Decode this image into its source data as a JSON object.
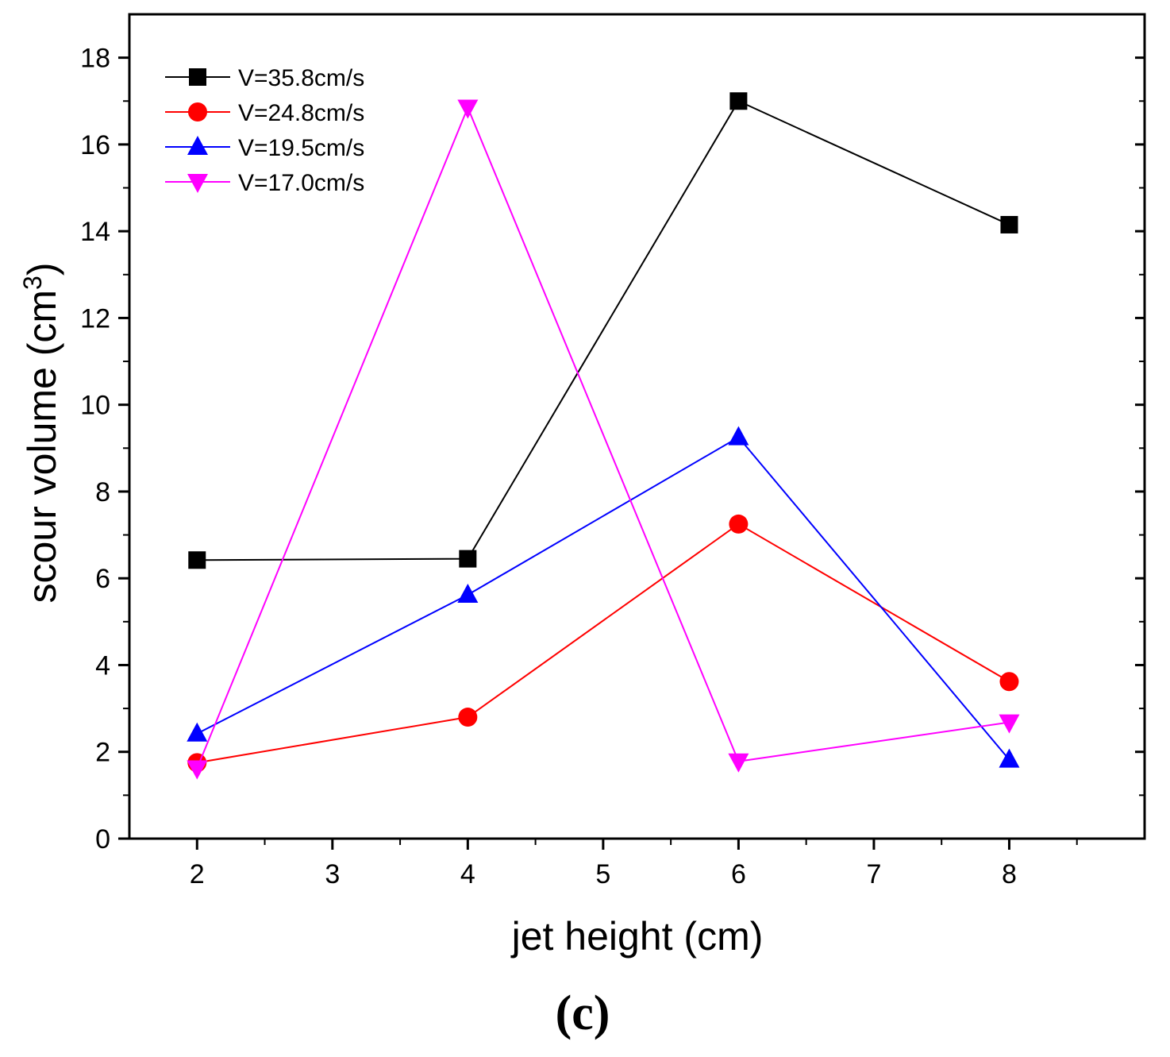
{
  "chart_data": {
    "type": "line",
    "title": "",
    "xlabel": "jet height (cm)",
    "ylabel": "scour volume (cm",
    "ylabel_superscript": "3",
    "ylabel_close": ")",
    "x": [
      2,
      4,
      6,
      8
    ],
    "xlim": [
      1.5,
      9
    ],
    "ylim": [
      0,
      19
    ],
    "x_ticks": [
      2,
      3,
      4,
      5,
      6,
      7,
      8
    ],
    "y_ticks": [
      0,
      2,
      4,
      6,
      8,
      10,
      12,
      14,
      16,
      18
    ],
    "legend_position": "top-left",
    "grid": false,
    "series": [
      {
        "name": "V=35.8cm/s",
        "marker": "square",
        "color": "#000000",
        "values": [
          6.42,
          6.45,
          17.0,
          14.15
        ]
      },
      {
        "name": "V=24.8cm/s",
        "marker": "circle",
        "color": "#ff0000",
        "values": [
          1.75,
          2.8,
          7.25,
          3.62
        ]
      },
      {
        "name": "V=19.5cm/s",
        "marker": "triangle-up",
        "color": "#0000ff",
        "values": [
          2.42,
          5.62,
          9.25,
          1.82
        ]
      },
      {
        "name": "V=17.0cm/s",
        "marker": "triangle-down",
        "color": "#ff00ff",
        "values": [
          1.62,
          16.85,
          1.78,
          2.68
        ]
      }
    ]
  },
  "caption": "(c)"
}
